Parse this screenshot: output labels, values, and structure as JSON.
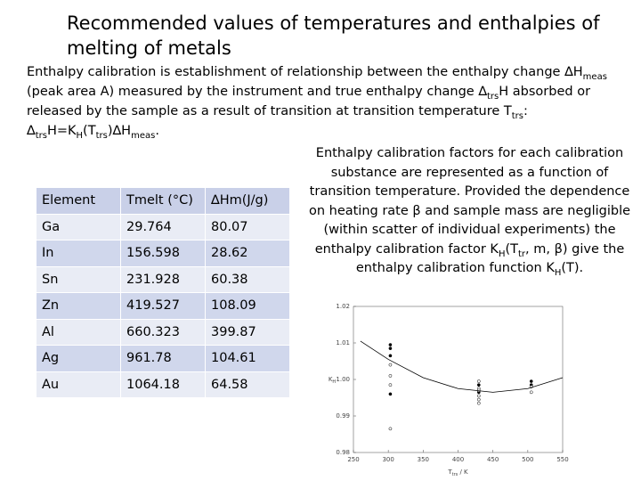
{
  "header": {
    "title": "Recommended values of temperatures and enthalpies of melting of metals"
  },
  "intro": {
    "text": [
      "Enthalpy calibration is establishment of relationship between the enthalpy change ∆H",
      "meas",
      " (peak area A) measured by the instrument and true enthalpy change ∆",
      "trs",
      "H absorbed or released by the sample as a result of transition  at transition temperature T",
      "trs",
      ":"
    ],
    "formula": [
      "∆",
      "trs",
      "H=K",
      "H",
      "(T",
      "trs",
      ")∆H",
      "meas",
      "."
    ]
  },
  "table": {
    "columns": [
      "Element",
      "Tmelt (°C)",
      "∆Hm(J/g)"
    ],
    "rows": [
      [
        "Ga",
        29.764,
        80.07
      ],
      [
        "In",
        156.598,
        28.62
      ],
      [
        "Sn",
        231.928,
        60.38
      ],
      [
        "Zn",
        419.527,
        108.09
      ],
      [
        "Al",
        660.323,
        399.87
      ],
      [
        "Ag",
        961.78,
        104.61
      ],
      [
        "Au",
        1064.18,
        64.58
      ]
    ]
  },
  "note": [
    "Enthalpy calibration factors for each calibration substance are represented as a function of transition temperature. Provided the dependence on heating rate β and sample mass are negligible (within scatter of individual experiments) the enthalpy calibration factor K",
    "H",
    "(T",
    "tr",
    ", m, β) give the enthalpy calibration function K",
    "H",
    "(T)."
  ],
  "chart_data": {
    "type": "scatter",
    "x_label": [
      "T",
      "trs",
      " / K"
    ],
    "y_label": [
      "K",
      "H"
    ],
    "xlim": [
      250,
      550
    ],
    "xticks": [
      250,
      300,
      350,
      400,
      450,
      500,
      550
    ],
    "ylim": [
      0.98,
      1.02
    ],
    "yticks": [
      0.98,
      0.99,
      {
        "value": 1,
        "label": "1.00"
      },
      1.01,
      1.02
    ],
    "series": [
      {
        "marker": "filled",
        "color": "#000000",
        "x": [
          302.9,
          302.9,
          302.9,
          302.9,
          429.75,
          429.75,
          505,
          505
        ],
        "values": [
          1.0095,
          1.0085,
          1.0065,
          0.996,
          0.9985,
          0.9965,
          0.9995,
          0.9985
        ]
      },
      {
        "marker": "open",
        "color": "#000000",
        "x": [
          302.9,
          302.9,
          302.9,
          302.9,
          429.75,
          429.75,
          429.75,
          429.75,
          429.75,
          429.75,
          505,
          505
        ],
        "values": [
          1.004,
          1.001,
          0.9985,
          0.9865,
          0.9995,
          0.9975,
          0.997,
          0.9955,
          0.9945,
          0.9935,
          0.998,
          0.9965
        ]
      },
      {
        "marker": "line",
        "color": "#000000",
        "x": [
          260,
          300,
          350,
          400,
          450,
          500,
          550
        ],
        "values": [
          1.0105,
          1.0055,
          1.0005,
          0.9975,
          0.9965,
          0.9975,
          1.0005
        ]
      }
    ]
  }
}
